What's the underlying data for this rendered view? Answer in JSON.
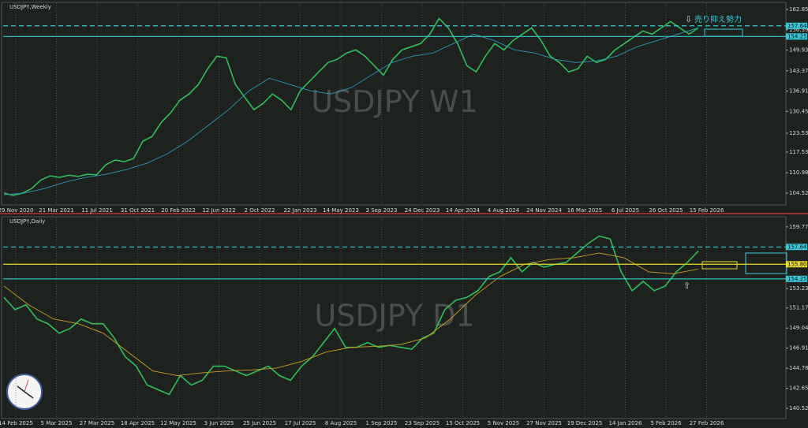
{
  "chart_data": [
    {
      "type": "line",
      "title": "USDJPY,Weekly",
      "watermark": "USDJPY W1",
      "annotation": "売り抑え勢力",
      "x_labels": [
        "29 Nov 2020",
        "21 Mar 2021",
        "11 Jul 2021",
        "31 Oct 2021",
        "20 Feb 2022",
        "12 Jun 2022",
        "2 Oct 2022",
        "22 Jan 2023",
        "14 May 2023",
        "3 Sep 2023",
        "24 Dec 2023",
        "14 Apr 2024",
        "4 Aug 2024",
        "24 Nov 2024",
        "16 Mar 2025",
        "6 Jul 2025",
        "26 Oct 2025",
        "15 Feb 2026"
      ],
      "ylim": [
        101.0,
        164.85
      ],
      "yticks": [
        {
          "value": 162.85,
          "label": "162.850"
        },
        {
          "value": 156.39,
          "label": "156.390"
        },
        {
          "value": 149.93,
          "label": "149.930"
        },
        143.375,
        136.915,
        130.455,
        123.535,
        117.535,
        {
          "value": 110.98,
          "label": "110.980"
        },
        {
          "value": 104.52,
          "label": "104.520"
        }
      ],
      "levels": [
        {
          "value": 157.643,
          "label": "157.643",
          "color": "#38c8d8",
          "dash": true
        },
        {
          "value": 154.258,
          "label": "154.258",
          "color": "#38c8d8",
          "dash": false
        }
      ],
      "series": [
        {
          "name": "Close",
          "color": "#2fbf5a",
          "values": [
            104.5,
            103.8,
            104.5,
            106,
            108.7,
            110,
            109.5,
            110.2,
            109.8,
            110.5,
            110.3,
            113.5,
            115,
            114.5,
            115.5,
            121,
            122.5,
            127,
            130,
            134,
            136,
            139,
            144,
            148,
            147.5,
            139,
            135,
            131,
            133,
            136,
            134,
            131,
            137,
            140,
            143,
            146,
            147,
            149,
            150,
            148,
            145,
            142,
            147,
            150,
            151,
            152,
            155,
            160,
            157,
            152,
            145,
            143,
            148,
            152,
            150,
            153,
            155,
            157,
            153,
            148,
            146,
            143,
            144,
            148,
            146,
            147,
            150,
            152,
            154,
            156,
            155,
            157,
            159,
            157,
            155,
            157
          ]
        },
        {
          "name": "MA",
          "color": "#2a9ab8",
          "values": [
            104,
            104.5,
            106,
            108,
            109.5,
            110.5,
            112,
            114,
            117,
            121,
            126,
            131,
            137,
            141,
            139,
            137,
            136,
            138,
            142,
            146,
            148,
            149,
            152,
            155,
            153,
            150,
            149,
            147,
            146,
            146.5,
            148,
            151,
            153,
            155,
            157
          ]
        }
      ]
    },
    {
      "type": "line",
      "title": "USDJPY,Daily",
      "watermark": "USDJPY D1",
      "x_labels": [
        "14 Feb 2025",
        "5 Mar 2025",
        "27 Mar 2025",
        "18 Apr 2025",
        "12 May 2025",
        "3 Jun 2025",
        "25 Jun 2025",
        "17 Jul 2025",
        "8 Aug 2025",
        "1 Sep 2025",
        "23 Sep 2025",
        "15 Oct 2025",
        "5 Nov 2025",
        "27 Nov 2025",
        "19 Dec 2025",
        "14 Jan 2026",
        "5 Feb 2026",
        "27 Feb 2026"
      ],
      "ylim": [
        139.53,
        160.76
      ],
      "yticks": [
        {
          "value": 159.77,
          "label": "159.770"
        },
        {
          "value": 153.23,
          "label": "153.230"
        },
        {
          "value": 151.17,
          "label": "151.170"
        },
        {
          "value": 149.04,
          "label": "149.040"
        },
        {
          "value": 146.91,
          "label": "146.910"
        },
        {
          "value": 144.78,
          "label": "144.780"
        },
        {
          "value": 142.65,
          "label": "142.650"
        },
        {
          "value": 140.52,
          "label": "140.520"
        }
      ],
      "levels": [
        {
          "value": 157.643,
          "label": "157.643",
          "color": "#38c8d8",
          "dash": true
        },
        {
          "value": 155.807,
          "label": "155.807",
          "color": "#e8d830",
          "dash": false
        },
        {
          "value": 154.258,
          "label": "154.258",
          "color": "#38c8d8",
          "dash": false
        }
      ],
      "series": [
        {
          "name": "Close",
          "color": "#2fbf5a",
          "values": [
            152.3,
            151,
            151.5,
            150,
            149.5,
            148.5,
            149,
            150,
            149.5,
            149.5,
            148,
            146,
            145,
            143,
            142.5,
            142,
            144,
            143,
            143.5,
            145,
            145,
            144.5,
            144,
            144.5,
            145,
            144,
            143.5,
            145,
            146,
            147.5,
            149,
            147,
            147,
            147.5,
            147,
            147.2,
            147,
            146.8,
            148,
            148.5,
            151,
            152,
            152.3,
            153,
            154.5,
            155,
            156.5,
            155,
            156,
            155.5,
            155.8,
            156,
            157,
            158,
            158.8,
            158.5,
            155,
            153,
            154,
            153,
            153.5,
            155,
            156,
            157.2
          ]
        },
        {
          "name": "MA",
          "color": "#c8a020",
          "values": [
            153.5,
            151.5,
            150,
            149.5,
            148.5,
            146.5,
            144.5,
            144,
            144.3,
            144.5,
            144.6,
            144.8,
            145.5,
            146.5,
            147,
            147.1,
            147.3,
            148,
            150,
            152.5,
            154.5,
            155.8,
            156.3,
            156.5,
            157,
            156.5,
            155,
            154.8,
            155.3
          ]
        }
      ]
    }
  ]
}
